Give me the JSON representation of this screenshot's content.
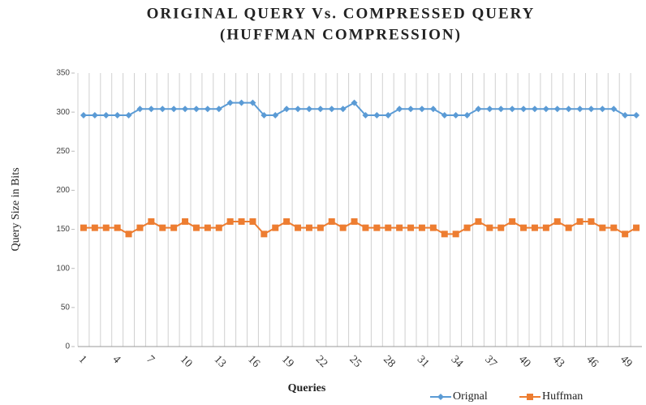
{
  "chart_data": {
    "type": "line",
    "title": [
      "ORIGINAL QUERY Vs. COMPRESSED QUERY",
      "(HUFFMAN COMPRESSION)"
    ],
    "xlabel": "Queries",
    "ylabel": "Query Size in Bits",
    "categories": [
      1,
      null,
      null,
      4,
      null,
      null,
      7,
      null,
      null,
      10,
      null,
      null,
      13,
      null,
      null,
      16,
      null,
      null,
      19,
      null,
      null,
      22,
      null,
      null,
      25,
      null,
      null,
      28,
      null,
      null,
      31,
      null,
      null,
      34,
      null,
      null,
      37,
      null,
      null,
      40,
      null,
      null,
      43,
      null,
      null,
      46,
      null,
      null,
      49,
      null
    ],
    "series": [
      {
        "name": "Orignal",
        "color": "#5b9bd5",
        "marker": "diamond",
        "values": [
          296,
          296,
          296,
          296,
          296,
          304,
          304,
          304,
          304,
          304,
          304,
          304,
          304,
          312,
          312,
          312,
          296,
          296,
          304,
          304,
          304,
          304,
          304,
          304,
          312,
          296,
          296,
          296,
          304,
          304,
          304,
          304,
          296,
          296,
          296,
          304,
          304,
          304,
          304,
          304,
          304,
          304,
          304,
          304,
          304,
          304,
          304,
          304,
          296,
          296
        ]
      },
      {
        "name": "Huffman",
        "color": "#ed7d31",
        "marker": "square",
        "values": [
          152,
          152,
          152,
          152,
          144,
          152,
          160,
          152,
          152,
          160,
          152,
          152,
          152,
          160,
          160,
          160,
          144,
          152,
          160,
          152,
          152,
          152,
          160,
          152,
          160,
          152,
          152,
          152,
          152,
          152,
          152,
          152,
          144,
          144,
          152,
          160,
          152,
          152,
          160,
          152,
          152,
          152,
          160,
          152,
          160,
          160,
          152,
          152,
          144,
          152
        ]
      }
    ],
    "ylim": [
      0,
      350
    ],
    "yticks": [
      0,
      50,
      100,
      150,
      200,
      250,
      300,
      350
    ],
    "grid": "x",
    "legend": "bottom-right"
  }
}
